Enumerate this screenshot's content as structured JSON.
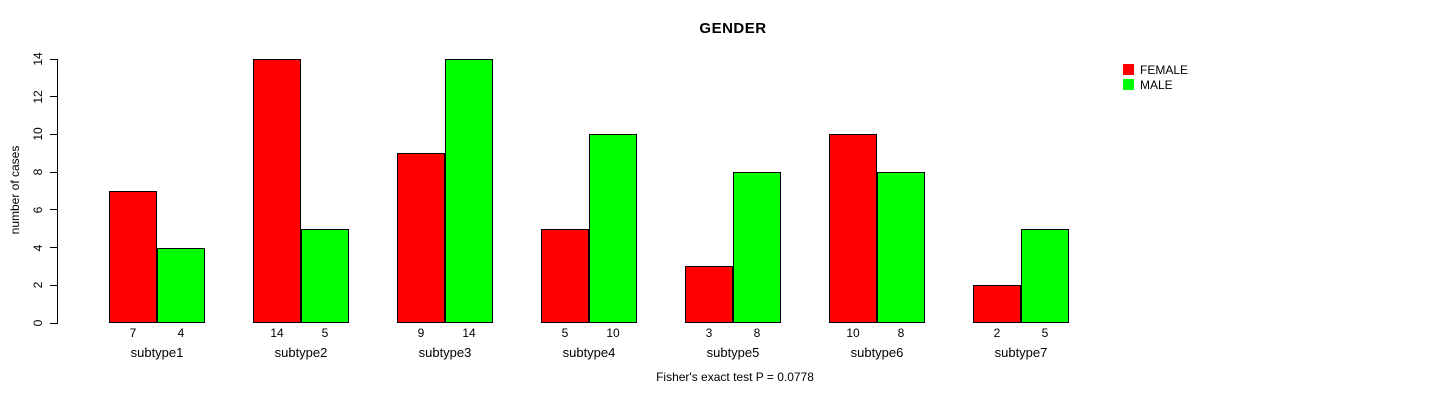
{
  "chart_data": {
    "type": "bar",
    "title": "GENDER",
    "ylabel": "number of cases",
    "xlabel": "",
    "categories": [
      "subtype1",
      "subtype2",
      "subtype3",
      "subtype4",
      "subtype5",
      "subtype6",
      "subtype7"
    ],
    "series": [
      {
        "name": "FEMALE",
        "color": "#ff0000",
        "values": [
          7,
          14,
          9,
          5,
          3,
          10,
          2
        ]
      },
      {
        "name": "MALE",
        "color": "#00ff00",
        "values": [
          4,
          5,
          14,
          10,
          8,
          8,
          5
        ]
      }
    ],
    "bar_value_labels_shown": true,
    "ylim": [
      0,
      14
    ],
    "yticks": [
      0,
      2,
      4,
      6,
      8,
      10,
      12,
      14
    ],
    "grid": false,
    "legend_position": "top-right",
    "annotation": "Fisher's exact test P = 0.0778"
  }
}
